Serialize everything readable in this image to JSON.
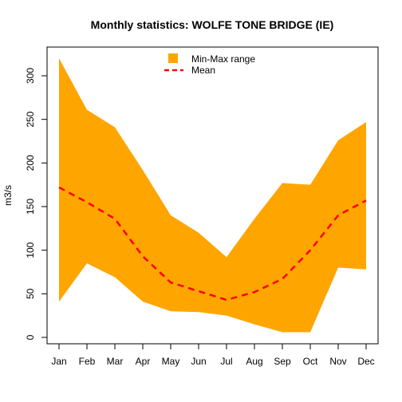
{
  "chart_data": {
    "type": "area",
    "title": "Monthly statistics: WOLFE TONE BRIDGE (IE)",
    "xlabel": "",
    "ylabel": "m3/s",
    "categories": [
      "Jan",
      "Feb",
      "Mar",
      "Apr",
      "May",
      "Jun",
      "Jul",
      "Aug",
      "Sep",
      "Oct",
      "Nov",
      "Dec"
    ],
    "ylim": [
      0,
      320
    ],
    "yticks": [
      0,
      50,
      100,
      150,
      200,
      250,
      300
    ],
    "grid": false,
    "legend_position": "top",
    "series": [
      {
        "name": "Min-Max range",
        "kind": "band",
        "color": "#FFA500",
        "min": [
          41,
          85,
          69,
          41,
          30,
          29,
          25,
          15,
          6,
          6,
          80,
          78
        ],
        "max": [
          320,
          261,
          241,
          192,
          140,
          120,
          92,
          136,
          177,
          175,
          226,
          247
        ]
      },
      {
        "name": "Mean",
        "kind": "line",
        "style": "dashed",
        "color": "#FF0000",
        "values": [
          172,
          155,
          136,
          93,
          63,
          53,
          43,
          52,
          67,
          100,
          140,
          157
        ]
      }
    ]
  }
}
